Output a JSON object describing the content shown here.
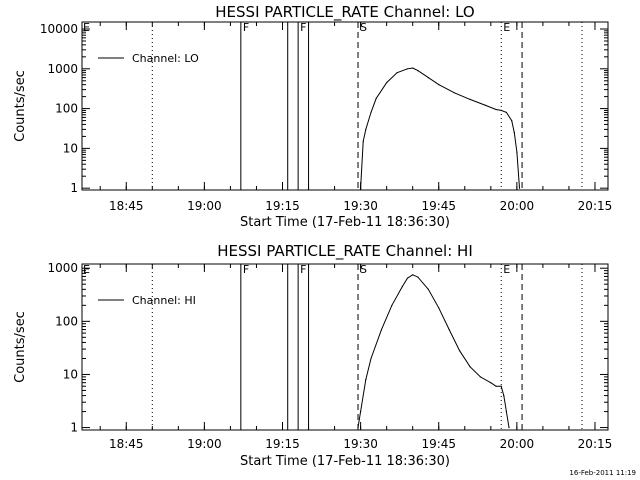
{
  "chart_data": [
    {
      "type": "line",
      "title": "HESSI PARTICLE_RATE Channel: LO",
      "xlabel": "Start Time (17-Feb-11 18:36:30)",
      "ylabel": "Counts/sec",
      "yscale": "log",
      "ylim": [
        0.9,
        15000
      ],
      "xlim": [
        "18:36:30",
        "20:17:30"
      ],
      "x_ticks": [
        "18:45",
        "19:00",
        "19:15",
        "19:30",
        "19:45",
        "20:00",
        "20:15"
      ],
      "y_ticks": [
        "1",
        "10",
        "100",
        "1000",
        "10000"
      ],
      "legend": {
        "position": "top-left",
        "entries": [
          "Channel: LO"
        ]
      },
      "series": [
        {
          "name": "Channel: LO",
          "x": [
            "19:30:00",
            "19:30:30",
            "19:31:00",
            "19:32:00",
            "19:33:00",
            "19:35:00",
            "19:37:00",
            "19:39:00",
            "19:40:00",
            "19:41:00",
            "19:43:00",
            "19:45:00",
            "19:48:00",
            "19:51:00",
            "19:54:00",
            "19:56:00",
            "19:57:00",
            "19:58:00",
            "19:59:00",
            "19:59:30",
            "20:00:00",
            "20:00:30"
          ],
          "y": [
            1,
            15,
            30,
            80,
            180,
            450,
            800,
            1000,
            1050,
            900,
            600,
            400,
            250,
            170,
            120,
            95,
            90,
            80,
            50,
            25,
            8,
            1
          ]
        }
      ],
      "vlines": [
        {
          "time": "18:50:00",
          "style": "dotted"
        },
        {
          "time": "19:07:00",
          "style": "solid",
          "label": "F"
        },
        {
          "time": "19:16:00",
          "style": "solid"
        },
        {
          "time": "19:18:00",
          "style": "solid",
          "label": "F"
        },
        {
          "time": "19:20:00",
          "style": "solid"
        },
        {
          "time": "19:29:30",
          "style": "dashed",
          "label": "S"
        },
        {
          "time": "19:57:00",
          "style": "dotted",
          "label": "E"
        },
        {
          "time": "20:01:00",
          "style": "dashed"
        },
        {
          "time": "20:12:30",
          "style": "dotted"
        }
      ],
      "edge_flag": "E"
    },
    {
      "type": "line",
      "title": "HESSI PARTICLE_RATE Channel: HI",
      "xlabel": "Start Time (17-Feb-11 18:36:30)",
      "ylabel": "Counts/sec",
      "yscale": "log",
      "ylim": [
        0.9,
        1200
      ],
      "xlim": [
        "18:36:30",
        "20:17:30"
      ],
      "x_ticks": [
        "18:45",
        "19:00",
        "19:15",
        "19:30",
        "19:45",
        "20:00",
        "20:15"
      ],
      "y_ticks": [
        "1",
        "10",
        "100",
        "1000"
      ],
      "legend": {
        "position": "top-left",
        "entries": [
          "Channel: HI"
        ]
      },
      "series": [
        {
          "name": "Channel: HI",
          "x": [
            "19:29:30",
            "19:30:00",
            "19:31:00",
            "19:32:00",
            "19:34:00",
            "19:36:00",
            "19:38:00",
            "19:39:00",
            "19:40:00",
            "19:41:00",
            "19:43:00",
            "19:45:00",
            "19:47:00",
            "19:49:00",
            "19:51:00",
            "19:53:00",
            "19:55:00",
            "19:56:00",
            "19:57:00",
            "19:57:30",
            "19:58:00",
            "19:58:30"
          ],
          "y": [
            1,
            2,
            8,
            20,
            70,
            200,
            450,
            650,
            750,
            680,
            400,
            180,
            70,
            28,
            14,
            9,
            7,
            6,
            6,
            4,
            2,
            1
          ]
        }
      ],
      "vlines": [
        {
          "time": "18:50:00",
          "style": "dotted"
        },
        {
          "time": "19:07:00",
          "style": "solid",
          "label": "F"
        },
        {
          "time": "19:16:00",
          "style": "solid"
        },
        {
          "time": "19:18:00",
          "style": "solid",
          "label": "F"
        },
        {
          "time": "19:20:00",
          "style": "solid"
        },
        {
          "time": "19:29:30",
          "style": "dashed",
          "label": "S"
        },
        {
          "time": "19:57:00",
          "style": "dotted",
          "label": "E"
        },
        {
          "time": "20:01:00",
          "style": "dashed"
        },
        {
          "time": "20:12:30",
          "style": "dotted"
        }
      ],
      "edge_flag": "E"
    }
  ],
  "footer": {
    "timestamp": "16-Feb-2011 11:19"
  }
}
